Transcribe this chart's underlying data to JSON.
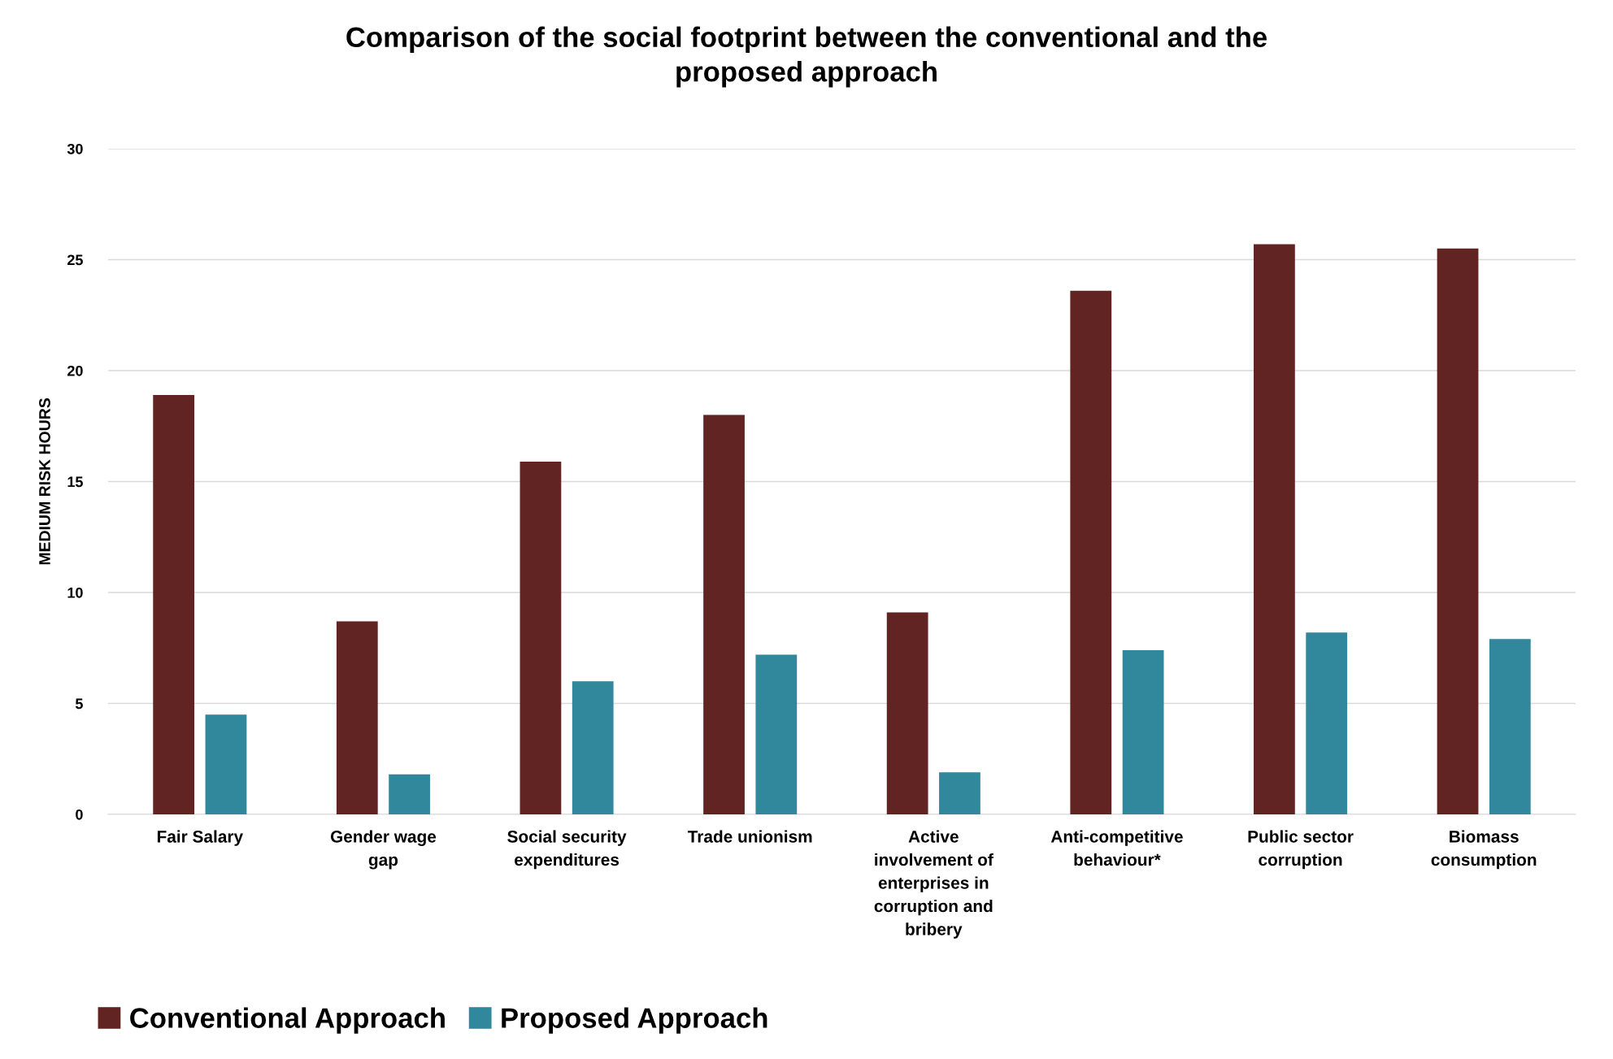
{
  "chart_data": {
    "type": "bar",
    "title": "Comparison of the social footprint between the conventional and the\nproposed approach",
    "ylabel": "MEDIUM RISK HOURS",
    "categories": [
      "Fair Salary",
      "Gender wage\ngap",
      "Social security\nexpenditures",
      "Trade unionism",
      "Active\ninvolvement of\nenterprises in\ncorruption and\nbribery",
      "Anti-competitive\nbehaviour*",
      "Public sector\ncorruption",
      "Biomass\nconsumption"
    ],
    "series": [
      {
        "name": "Conventional Approach",
        "color": "#622323",
        "values": [
          18.9,
          8.7,
          15.9,
          18.0,
          9.1,
          23.6,
          25.7,
          25.5
        ]
      },
      {
        "name": "Proposed Approach",
        "color": "#31879c",
        "values": [
          4.5,
          1.8,
          6.0,
          7.2,
          1.9,
          7.4,
          8.2,
          7.9
        ]
      }
    ],
    "ylim": [
      0,
      30
    ],
    "yticks": [
      0,
      5,
      10,
      15,
      20,
      25,
      30
    ],
    "grid": "y",
    "legend": "bottom left"
  }
}
